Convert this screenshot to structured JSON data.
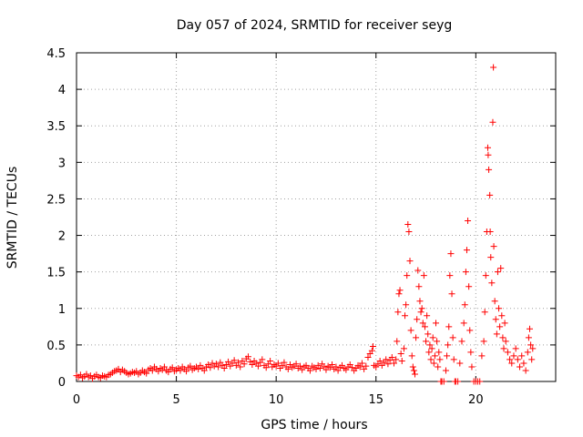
{
  "chart_data": {
    "type": "scatter",
    "title": "Day 057 of 2024, SRMTID for receiver seyg",
    "xlabel": "GPS time / hours",
    "ylabel": "SRMTID / TECUs",
    "xlim": [
      0,
      24
    ],
    "ylim": [
      0,
      4.5
    ],
    "xticks": [
      0,
      5,
      10,
      15,
      20
    ],
    "yticks": [
      0,
      0.5,
      1,
      1.5,
      2,
      2.5,
      3,
      3.5,
      4,
      4.5
    ],
    "xtick_labels": [
      "0",
      "5",
      "10",
      "15",
      "20"
    ],
    "ytick_labels": [
      "0",
      "0.5",
      "1",
      "1.5",
      "2",
      "2.5",
      "3",
      "3.5",
      "4",
      "4.5"
    ],
    "grid": true,
    "marker": "+",
    "color": "#ff0000",
    "series": [
      {
        "name": "SRMTID",
        "points": [
          [
            0.0,
            0.08
          ],
          [
            0.1,
            0.06
          ],
          [
            0.2,
            0.09
          ],
          [
            0.3,
            0.05
          ],
          [
            0.4,
            0.07
          ],
          [
            0.5,
            0.1
          ],
          [
            0.6,
            0.06
          ],
          [
            0.7,
            0.08
          ],
          [
            0.8,
            0.04
          ],
          [
            0.9,
            0.07
          ],
          [
            1.0,
            0.09
          ],
          [
            1.1,
            0.06
          ],
          [
            1.2,
            0.05
          ],
          [
            1.3,
            0.08
          ],
          [
            1.4,
            0.07
          ],
          [
            1.5,
            0.06
          ],
          [
            1.6,
            0.09
          ],
          [
            1.7,
            0.1
          ],
          [
            1.8,
            0.12
          ],
          [
            1.9,
            0.14
          ],
          [
            2.0,
            0.15
          ],
          [
            2.1,
            0.17
          ],
          [
            2.2,
            0.13
          ],
          [
            2.3,
            0.16
          ],
          [
            2.4,
            0.14
          ],
          [
            2.5,
            0.12
          ],
          [
            2.6,
            0.1
          ],
          [
            2.7,
            0.11
          ],
          [
            2.8,
            0.13
          ],
          [
            2.9,
            0.12
          ],
          [
            3.0,
            0.14
          ],
          [
            3.1,
            0.1
          ],
          [
            3.2,
            0.12
          ],
          [
            3.3,
            0.15
          ],
          [
            3.4,
            0.13
          ],
          [
            3.5,
            0.11
          ],
          [
            3.6,
            0.16
          ],
          [
            3.7,
            0.18
          ],
          [
            3.8,
            0.15
          ],
          [
            3.9,
            0.2
          ],
          [
            4.0,
            0.17
          ],
          [
            4.1,
            0.14
          ],
          [
            4.2,
            0.18
          ],
          [
            4.3,
            0.16
          ],
          [
            4.4,
            0.2
          ],
          [
            4.5,
            0.15
          ],
          [
            4.6,
            0.13
          ],
          [
            4.7,
            0.17
          ],
          [
            4.8,
            0.19
          ],
          [
            4.9,
            0.14
          ],
          [
            5.0,
            0.16
          ],
          [
            5.1,
            0.18
          ],
          [
            5.2,
            0.15
          ],
          [
            5.3,
            0.2
          ],
          [
            5.4,
            0.17
          ],
          [
            5.5,
            0.14
          ],
          [
            5.6,
            0.19
          ],
          [
            5.7,
            0.21
          ],
          [
            5.8,
            0.16
          ],
          [
            5.9,
            0.18
          ],
          [
            6.0,
            0.2
          ],
          [
            6.1,
            0.17
          ],
          [
            6.2,
            0.22
          ],
          [
            6.3,
            0.18
          ],
          [
            6.4,
            0.15
          ],
          [
            6.5,
            0.2
          ],
          [
            6.6,
            0.23
          ],
          [
            6.7,
            0.19
          ],
          [
            6.8,
            0.25
          ],
          [
            6.9,
            0.21
          ],
          [
            7.0,
            0.24
          ],
          [
            7.1,
            0.2
          ],
          [
            7.2,
            0.26
          ],
          [
            7.3,
            0.22
          ],
          [
            7.4,
            0.18
          ],
          [
            7.5,
            0.23
          ],
          [
            7.6,
            0.27
          ],
          [
            7.7,
            0.21
          ],
          [
            7.8,
            0.25
          ],
          [
            7.9,
            0.29
          ],
          [
            8.0,
            0.22
          ],
          [
            8.1,
            0.26
          ],
          [
            8.2,
            0.2
          ],
          [
            8.3,
            0.28
          ],
          [
            8.4,
            0.24
          ],
          [
            8.5,
            0.31
          ],
          [
            8.6,
            0.34
          ],
          [
            8.7,
            0.27
          ],
          [
            8.8,
            0.23
          ],
          [
            8.9,
            0.28
          ],
          [
            9.0,
            0.25
          ],
          [
            9.1,
            0.21
          ],
          [
            9.2,
            0.26
          ],
          [
            9.3,
            0.3
          ],
          [
            9.4,
            0.22
          ],
          [
            9.5,
            0.19
          ],
          [
            9.6,
            0.24
          ],
          [
            9.7,
            0.28
          ],
          [
            9.8,
            0.2
          ],
          [
            9.9,
            0.23
          ],
          [
            10.0,
            0.21
          ],
          [
            10.1,
            0.25
          ],
          [
            10.2,
            0.18
          ],
          [
            10.3,
            0.22
          ],
          [
            10.4,
            0.26
          ],
          [
            10.5,
            0.2
          ],
          [
            10.6,
            0.17
          ],
          [
            10.7,
            0.23
          ],
          [
            10.8,
            0.19
          ],
          [
            10.9,
            0.21
          ],
          [
            11.0,
            0.24
          ],
          [
            11.1,
            0.18
          ],
          [
            11.2,
            0.21
          ],
          [
            11.3,
            0.16
          ],
          [
            11.4,
            0.2
          ],
          [
            11.5,
            0.22
          ],
          [
            11.6,
            0.18
          ],
          [
            11.7,
            0.15
          ],
          [
            11.8,
            0.21
          ],
          [
            11.9,
            0.19
          ],
          [
            12.0,
            0.17
          ],
          [
            12.1,
            0.22
          ],
          [
            12.2,
            0.18
          ],
          [
            12.3,
            0.24
          ],
          [
            12.4,
            0.2
          ],
          [
            12.5,
            0.16
          ],
          [
            12.6,
            0.21
          ],
          [
            12.7,
            0.19
          ],
          [
            12.8,
            0.23
          ],
          [
            12.9,
            0.17
          ],
          [
            13.0,
            0.2
          ],
          [
            13.1,
            0.15
          ],
          [
            13.2,
            0.19
          ],
          [
            13.3,
            0.22
          ],
          [
            13.4,
            0.18
          ],
          [
            13.5,
            0.16
          ],
          [
            13.6,
            0.2
          ],
          [
            13.7,
            0.23
          ],
          [
            13.8,
            0.19
          ],
          [
            13.9,
            0.15
          ],
          [
            14.0,
            0.18
          ],
          [
            14.1,
            0.22
          ],
          [
            14.2,
            0.2
          ],
          [
            14.3,
            0.25
          ],
          [
            14.4,
            0.17
          ],
          [
            14.5,
            0.21
          ],
          [
            14.6,
            0.33
          ],
          [
            14.7,
            0.38
          ],
          [
            14.8,
            0.42
          ],
          [
            14.85,
            0.48
          ],
          [
            14.9,
            0.22
          ],
          [
            15.0,
            0.2
          ],
          [
            15.1,
            0.24
          ],
          [
            15.2,
            0.28
          ],
          [
            15.3,
            0.22
          ],
          [
            15.4,
            0.26
          ],
          [
            15.5,
            0.3
          ],
          [
            15.6,
            0.24
          ],
          [
            15.7,
            0.29
          ],
          [
            15.8,
            0.33
          ],
          [
            15.9,
            0.25
          ],
          [
            16.0,
            0.3
          ],
          [
            16.05,
            0.55
          ],
          [
            16.1,
            0.95
          ],
          [
            16.15,
            1.2
          ],
          [
            16.2,
            1.25
          ],
          [
            16.25,
            0.38
          ],
          [
            16.3,
            0.28
          ],
          [
            16.4,
            0.45
          ],
          [
            16.45,
            0.9
          ],
          [
            16.5,
            1.05
          ],
          [
            16.55,
            1.45
          ],
          [
            16.6,
            2.15
          ],
          [
            16.65,
            2.05
          ],
          [
            16.7,
            1.65
          ],
          [
            16.75,
            0.7
          ],
          [
            16.8,
            0.35
          ],
          [
            16.85,
            0.2
          ],
          [
            16.9,
            0.15
          ],
          [
            16.95,
            0.1
          ],
          [
            17.0,
            0.6
          ],
          [
            17.05,
            0.85
          ],
          [
            17.1,
            1.52
          ],
          [
            17.15,
            1.3
          ],
          [
            17.2,
            1.1
          ],
          [
            17.25,
            0.95
          ],
          [
            17.3,
            1.0
          ],
          [
            17.35,
            0.8
          ],
          [
            17.4,
            1.45
          ],
          [
            17.45,
            0.75
          ],
          [
            17.5,
            0.55
          ],
          [
            17.55,
            0.9
          ],
          [
            17.6,
            0.65
          ],
          [
            17.65,
            0.4
          ],
          [
            17.7,
            0.5
          ],
          [
            17.75,
            0.3
          ],
          [
            17.8,
            0.45
          ],
          [
            17.85,
            0.6
          ],
          [
            17.9,
            0.25
          ],
          [
            17.95,
            0.35
          ],
          [
            18.0,
            0.8
          ],
          [
            18.05,
            0.55
          ],
          [
            18.1,
            0.2
          ],
          [
            18.15,
            0.4
          ],
          [
            18.2,
            0.3
          ],
          [
            18.25,
            0.0
          ],
          [
            18.3,
            0.0
          ],
          [
            18.4,
            0.0
          ],
          [
            18.5,
            0.15
          ],
          [
            18.55,
            0.35
          ],
          [
            18.6,
            0.5
          ],
          [
            18.65,
            0.75
          ],
          [
            18.7,
            1.45
          ],
          [
            18.75,
            1.75
          ],
          [
            18.8,
            1.2
          ],
          [
            18.85,
            0.6
          ],
          [
            18.9,
            0.3
          ],
          [
            18.95,
            0.0
          ],
          [
            19.0,
            0.0
          ],
          [
            19.1,
            0.0
          ],
          [
            19.2,
            0.25
          ],
          [
            19.3,
            0.55
          ],
          [
            19.4,
            0.8
          ],
          [
            19.45,
            1.05
          ],
          [
            19.5,
            1.5
          ],
          [
            19.55,
            1.8
          ],
          [
            19.6,
            2.2
          ],
          [
            19.65,
            1.3
          ],
          [
            19.7,
            0.7
          ],
          [
            19.75,
            0.4
          ],
          [
            19.8,
            0.2
          ],
          [
            19.9,
            0.0
          ],
          [
            20.0,
            0.0
          ],
          [
            20.1,
            0.0
          ],
          [
            20.2,
            0.0
          ],
          [
            20.3,
            0.35
          ],
          [
            20.4,
            0.55
          ],
          [
            20.45,
            0.95
          ],
          [
            20.5,
            1.45
          ],
          [
            20.55,
            2.05
          ],
          [
            20.6,
            3.2
          ],
          [
            20.62,
            3.1
          ],
          [
            20.65,
            2.9
          ],
          [
            20.7,
            2.55
          ],
          [
            20.72,
            2.05
          ],
          [
            20.75,
            1.7
          ],
          [
            20.8,
            1.35
          ],
          [
            20.85,
            3.55
          ],
          [
            20.88,
            4.3
          ],
          [
            20.9,
            1.85
          ],
          [
            20.95,
            1.1
          ],
          [
            21.0,
            0.85
          ],
          [
            21.05,
            0.65
          ],
          [
            21.1,
            1.5
          ],
          [
            21.15,
            1.0
          ],
          [
            21.2,
            0.75
          ],
          [
            21.25,
            1.55
          ],
          [
            21.3,
            0.9
          ],
          [
            21.35,
            0.6
          ],
          [
            21.4,
            0.45
          ],
          [
            21.45,
            0.8
          ],
          [
            21.5,
            0.55
          ],
          [
            21.6,
            0.4
          ],
          [
            21.7,
            0.3
          ],
          [
            21.8,
            0.25
          ],
          [
            21.9,
            0.35
          ],
          [
            22.0,
            0.45
          ],
          [
            22.1,
            0.3
          ],
          [
            22.2,
            0.2
          ],
          [
            22.3,
            0.35
          ],
          [
            22.4,
            0.25
          ],
          [
            22.5,
            0.15
          ],
          [
            22.6,
            0.4
          ],
          [
            22.65,
            0.6
          ],
          [
            22.7,
            0.72
          ],
          [
            22.75,
            0.5
          ],
          [
            22.8,
            0.3
          ],
          [
            22.85,
            0.45
          ]
        ]
      }
    ]
  }
}
